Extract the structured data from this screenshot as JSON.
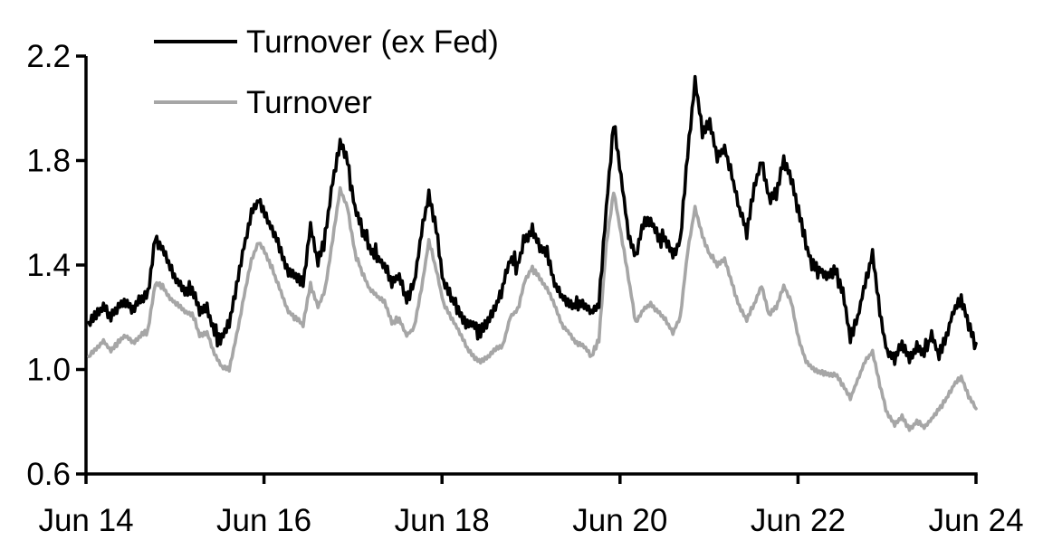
{
  "chart_data": {
    "type": "line",
    "title": "",
    "background_color": "#ffffff",
    "axis_color": "#000000",
    "grid": false,
    "legend": {
      "position": "top-left"
    },
    "x_axis": {
      "tick_labels": [
        "Jun 14",
        "Jun 16",
        "Jun 18",
        "Jun 20",
        "Jun 22",
        "Jun 24"
      ]
    },
    "y_axis": {
      "min": 0.6,
      "max": 2.2,
      "ticks": [
        0.6,
        1.0,
        1.4,
        1.8,
        2.2
      ],
      "tick_decimals": 1
    },
    "x_range": {
      "start_label": "Jun 14",
      "end_label": "Jun 24",
      "points_per_series": 121,
      "spacing": "monthly"
    },
    "series": [
      {
        "name": "Turnover (ex Fed)",
        "color": "#000000",
        "noise_amplitude": 0.016,
        "values": [
          1.18,
          1.21,
          1.24,
          1.2,
          1.24,
          1.26,
          1.23,
          1.27,
          1.29,
          1.5,
          1.46,
          1.39,
          1.34,
          1.3,
          1.31,
          1.22,
          1.24,
          1.14,
          1.12,
          1.18,
          1.32,
          1.47,
          1.6,
          1.65,
          1.58,
          1.53,
          1.45,
          1.37,
          1.36,
          1.33,
          1.55,
          1.41,
          1.52,
          1.72,
          1.87,
          1.8,
          1.62,
          1.53,
          1.47,
          1.43,
          1.4,
          1.33,
          1.36,
          1.27,
          1.33,
          1.52,
          1.67,
          1.54,
          1.33,
          1.28,
          1.22,
          1.18,
          1.17,
          1.15,
          1.18,
          1.24,
          1.32,
          1.42,
          1.4,
          1.5,
          1.53,
          1.47,
          1.45,
          1.33,
          1.28,
          1.25,
          1.24,
          1.25,
          1.22,
          1.25,
          1.62,
          1.94,
          1.74,
          1.52,
          1.43,
          1.57,
          1.57,
          1.51,
          1.5,
          1.44,
          1.49,
          1.83,
          2.1,
          1.92,
          1.94,
          1.81,
          1.85,
          1.74,
          1.61,
          1.53,
          1.7,
          1.8,
          1.66,
          1.68,
          1.8,
          1.73,
          1.62,
          1.47,
          1.4,
          1.38,
          1.36,
          1.38,
          1.3,
          1.12,
          1.2,
          1.33,
          1.44,
          1.22,
          1.06,
          1.04,
          1.1,
          1.04,
          1.09,
          1.06,
          1.13,
          1.05,
          1.13,
          1.23,
          1.27,
          1.17,
          1.1
        ]
      },
      {
        "name": "Turnover",
        "color": "#a6a6a6",
        "noise_amplitude": 0.006,
        "values": [
          1.05,
          1.08,
          1.11,
          1.07,
          1.11,
          1.13,
          1.1,
          1.13,
          1.15,
          1.33,
          1.32,
          1.27,
          1.25,
          1.22,
          1.21,
          1.13,
          1.14,
          1.06,
          1.01,
          1.0,
          1.13,
          1.28,
          1.42,
          1.49,
          1.44,
          1.37,
          1.3,
          1.22,
          1.2,
          1.17,
          1.33,
          1.24,
          1.31,
          1.5,
          1.69,
          1.62,
          1.45,
          1.37,
          1.31,
          1.28,
          1.26,
          1.18,
          1.19,
          1.13,
          1.16,
          1.31,
          1.49,
          1.38,
          1.25,
          1.2,
          1.15,
          1.09,
          1.05,
          1.03,
          1.05,
          1.08,
          1.09,
          1.2,
          1.23,
          1.34,
          1.39,
          1.35,
          1.31,
          1.25,
          1.17,
          1.14,
          1.1,
          1.09,
          1.05,
          1.11,
          1.48,
          1.68,
          1.52,
          1.35,
          1.18,
          1.23,
          1.25,
          1.22,
          1.19,
          1.14,
          1.2,
          1.45,
          1.62,
          1.51,
          1.44,
          1.4,
          1.42,
          1.33,
          1.24,
          1.19,
          1.25,
          1.32,
          1.21,
          1.24,
          1.32,
          1.26,
          1.12,
          1.03,
          1.0,
          0.99,
          0.98,
          0.98,
          0.94,
          0.89,
          0.96,
          1.03,
          1.07,
          0.94,
          0.83,
          0.79,
          0.82,
          0.77,
          0.8,
          0.78,
          0.81,
          0.85,
          0.89,
          0.94,
          0.97,
          0.9,
          0.85
        ]
      }
    ]
  }
}
